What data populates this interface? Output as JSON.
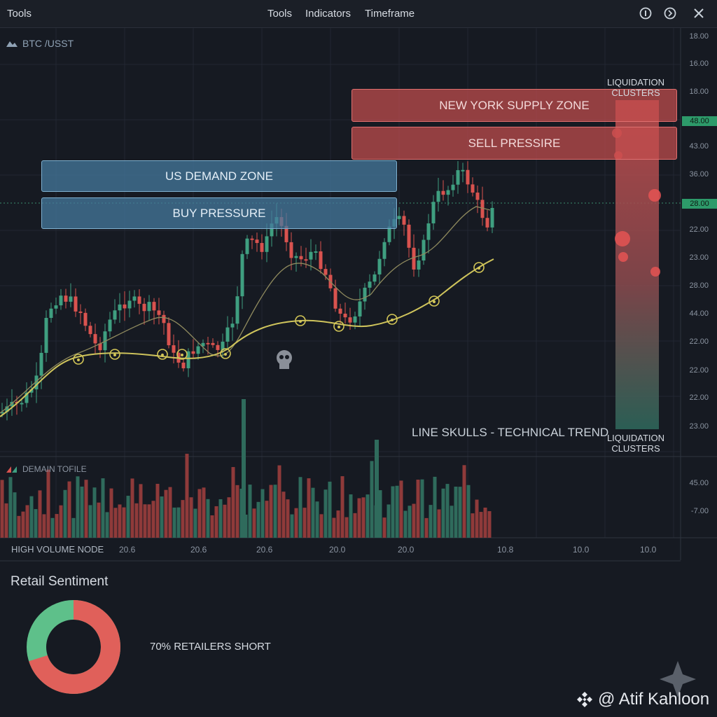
{
  "topbar": {
    "app_title": "Tools",
    "menu": [
      "Tools",
      "Indicators",
      "Timeframe"
    ],
    "icons": [
      "info-icon",
      "settings-icon",
      "close-icon"
    ]
  },
  "chart": {
    "pair": "BTC /USST",
    "zones": {
      "supply": "NEW YORK SUPPLY ZONE",
      "sell": "SELL PRESSIRE",
      "demand": "US DEMAND ZONE",
      "buy": "BUY PRESSURE"
    },
    "liquidation_top": "LIQUIDATION CLUSTERS",
    "liquidation_bottom": "LIQUIDATION CLUSTERS",
    "trend_label": "LINE SKULLS - TECHNICAL TREND",
    "price_axis": [
      "18.00",
      "16.00",
      "18.00",
      "43.00",
      "36.00",
      "22.00",
      "23.00",
      "28.00",
      "44.00",
      "22.00",
      "22.00",
      "22.00",
      "23.00"
    ],
    "price_tags": [
      "48.00",
      "28.00"
    ],
    "volume_label": "DEMAIN TOFILE",
    "volume_axis": [
      "45.00",
      "-7.00"
    ],
    "high_volume_node": "HIGH VOLUME NODE",
    "time_axis": [
      "20.6",
      "20.6",
      "20.6",
      "20.0",
      "20.0",
      "10.8",
      "10.0",
      "10.0"
    ],
    "colors": {
      "up": "#3f9f80",
      "down": "#d9534f",
      "trend": "#c9c25a",
      "supply": "#c44e4e",
      "demand": "#467a9e"
    }
  },
  "sentiment": {
    "title": "Retail Sentiment",
    "text": "70% RETAILERS SHORT",
    "short_pct": 70,
    "long_pct": 30,
    "colors": {
      "short": "#e0605a",
      "long": "#5ec08a"
    }
  },
  "watermark": "@ Atif Kahloon"
}
